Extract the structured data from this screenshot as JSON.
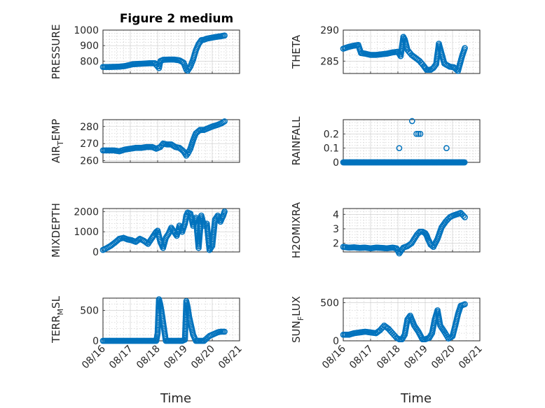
{
  "figure": {
    "title": "Figure 2 medium",
    "marker_color": "#0072BD"
  },
  "x_axis": {
    "label": "Time",
    "ticks": [
      {
        "t": 0,
        "label": "08/16"
      },
      {
        "t": 1,
        "label": "08/17"
      },
      {
        "t": 2,
        "label": "08/18"
      },
      {
        "t": 3,
        "label": "08/19"
      },
      {
        "t": 4,
        "label": "08/20"
      },
      {
        "t": 5,
        "label": "08/21"
      }
    ]
  },
  "chart_data": [
    {
      "type": "scatter",
      "ylabel": "PRESSURE",
      "ylim": [
        720,
        1000
      ],
      "yticks": [
        {
          "v": 800,
          "label": "800"
        },
        {
          "v": 900,
          "label": "900"
        },
        {
          "v": 1000,
          "label": "1000"
        }
      ],
      "x": [
        0.0,
        0.2,
        0.4,
        0.6,
        0.8,
        0.95,
        1.1,
        1.3,
        1.5,
        1.7,
        1.9,
        2.0,
        2.05,
        2.1,
        2.2,
        2.4,
        2.6,
        2.8,
        2.95,
        3.05,
        3.1,
        3.2,
        3.3,
        3.4,
        3.5,
        3.6,
        3.7,
        3.8,
        3.95,
        4.1,
        4.3,
        4.45
      ],
      "y": [
        762,
        762,
        763,
        764,
        768,
        774,
        780,
        782,
        784,
        786,
        786,
        765,
        755,
        800,
        808,
        810,
        810,
        805,
        790,
        745,
        738,
        765,
        810,
        870,
        910,
        935,
        938,
        945,
        950,
        955,
        960,
        965
      ]
    },
    {
      "type": "scatter",
      "ylabel": "THETA",
      "ylim": [
        283,
        290
      ],
      "yticks": [
        {
          "v": 285,
          "label": "285"
        },
        {
          "v": 290,
          "label": "290"
        }
      ],
      "x": [
        0.0,
        0.2,
        0.4,
        0.55,
        0.65,
        0.8,
        1.0,
        1.2,
        1.4,
        1.6,
        1.8,
        2.0,
        2.1,
        2.2,
        2.25,
        2.35,
        2.5,
        2.65,
        2.8,
        2.95,
        3.05,
        3.2,
        3.3,
        3.4,
        3.5,
        3.7,
        3.9,
        4.05,
        4.2,
        4.35,
        4.45
      ],
      "y": [
        287.0,
        287.3,
        287.5,
        287.6,
        286.3,
        286.2,
        286.0,
        286.0,
        286.1,
        286.2,
        286.4,
        286.5,
        285.8,
        288.9,
        288.5,
        286.8,
        286.0,
        285.5,
        285.0,
        284.2,
        283.6,
        283.6,
        283.9,
        284.5,
        287.8,
        284.6,
        284.1,
        284.0,
        283.4,
        285.8,
        287.1
      ]
    },
    {
      "type": "scatter",
      "ylabel": "AIR_TEMP",
      "ylabel_main": "AIR",
      "ylabel_sub": "T",
      "ylabel_tail": "EMP",
      "ylim": [
        259,
        284
      ],
      "yticks": [
        {
          "v": 260,
          "label": "260"
        },
        {
          "v": 270,
          "label": "270"
        },
        {
          "v": 280,
          "label": "280"
        }
      ],
      "x": [
        0.0,
        0.2,
        0.4,
        0.6,
        0.8,
        1.0,
        1.2,
        1.4,
        1.6,
        1.8,
        1.95,
        2.1,
        2.2,
        2.35,
        2.5,
        2.65,
        2.8,
        2.95,
        3.05,
        3.1,
        3.2,
        3.3,
        3.4,
        3.55,
        3.7,
        3.85,
        4.0,
        4.2,
        4.35,
        4.45
      ],
      "y": [
        266,
        266,
        266,
        265.5,
        266.5,
        267,
        267.5,
        267.5,
        268,
        268,
        267,
        268,
        270,
        269.5,
        269.5,
        268,
        267.5,
        265.5,
        263,
        264,
        267,
        272,
        276,
        278,
        278,
        279,
        280,
        281,
        282,
        283
      ]
    },
    {
      "type": "scatter",
      "ylabel": "RAINFALL",
      "ylim": [
        0,
        0.3
      ],
      "yticks": [
        {
          "v": 0,
          "label": "0"
        },
        {
          "v": 0.1,
          "label": "0.1"
        },
        {
          "v": 0.2,
          "label": "0.2"
        }
      ],
      "x": [
        0.0,
        0.2,
        0.4,
        0.6,
        0.8,
        1.0,
        1.2,
        1.4,
        1.6,
        1.8,
        2.0,
        2.05,
        2.2,
        2.4,
        2.6,
        2.8,
        3.0,
        3.2,
        3.4,
        3.6,
        3.8,
        3.95,
        4.0,
        4.2,
        4.45,
        2.52,
        2.68,
        2.75,
        2.82,
        3.78
      ],
      "y": [
        0,
        0,
        0,
        0,
        0,
        0,
        0,
        0,
        0,
        0,
        0,
        0.1,
        0,
        0,
        0,
        0,
        0,
        0,
        0,
        0,
        0,
        0,
        0,
        0,
        0,
        0.29,
        0.2,
        0.2,
        0.2,
        0.1
      ]
    },
    {
      "type": "scatter",
      "ylabel": "MIXDEPTH",
      "ylim": [
        0,
        2150
      ],
      "yticks": [
        {
          "v": 0,
          "label": "0"
        },
        {
          "v": 1000,
          "label": "1000"
        },
        {
          "v": 2000,
          "label": "2000"
        }
      ],
      "x": [
        0.0,
        0.15,
        0.3,
        0.45,
        0.6,
        0.75,
        0.9,
        1.05,
        1.2,
        1.35,
        1.5,
        1.65,
        1.8,
        1.9,
        1.95,
        2.0,
        2.1,
        2.2,
        2.3,
        2.4,
        2.5,
        2.6,
        2.7,
        2.8,
        2.9,
        3.0,
        3.05,
        3.1,
        3.2,
        3.3,
        3.4,
        3.5,
        3.6,
        3.7,
        3.8,
        3.9,
        4.0,
        4.1,
        4.2,
        4.3,
        4.4,
        4.45
      ],
      "y": [
        100,
        200,
        320,
        480,
        650,
        700,
        620,
        580,
        500,
        650,
        550,
        400,
        700,
        900,
        1000,
        1050,
        500,
        200,
        700,
        900,
        1200,
        1000,
        800,
        1300,
        1000,
        1400,
        1800,
        1950,
        1900,
        1300,
        1700,
        200,
        1800,
        1300,
        1400,
        100,
        300,
        1600,
        1800,
        1500,
        1800,
        2000
      ]
    },
    {
      "type": "scatter",
      "ylabel": "H2OMIXRA",
      "ylim": [
        1.4,
        4.4
      ],
      "yticks": [
        {
          "v": 2,
          "label": "2"
        },
        {
          "v": 3,
          "label": "3"
        },
        {
          "v": 4,
          "label": "4"
        }
      ],
      "x": [
        0.0,
        0.2,
        0.4,
        0.6,
        0.8,
        1.0,
        1.2,
        1.4,
        1.6,
        1.8,
        1.95,
        2.05,
        2.2,
        2.35,
        2.5,
        2.6,
        2.7,
        2.8,
        2.9,
        3.0,
        3.05,
        3.1,
        3.2,
        3.3,
        3.45,
        3.6,
        3.75,
        3.9,
        4.0,
        4.15,
        4.3,
        4.45
      ],
      "y": [
        1.75,
        1.7,
        1.72,
        1.68,
        1.7,
        1.65,
        1.7,
        1.68,
        1.65,
        1.7,
        1.65,
        1.3,
        1.7,
        1.8,
        2.0,
        2.3,
        2.6,
        2.8,
        2.8,
        2.7,
        2.55,
        2.3,
        1.9,
        1.75,
        2.3,
        3.1,
        3.5,
        3.8,
        3.9,
        4.0,
        4.1,
        3.8
      ]
    },
    {
      "type": "scatter",
      "ylabel": "TERR_MSL",
      "ylabel_main": "TERR",
      "ylabel_sub": "M",
      "ylabel_tail": "SL",
      "ylim": [
        0,
        700
      ],
      "yticks": [
        {
          "v": 0,
          "label": "0"
        },
        {
          "v": 500,
          "label": "500"
        }
      ],
      "x": [
        0.0,
        0.2,
        0.4,
        0.6,
        0.8,
        1.0,
        1.2,
        1.4,
        1.6,
        1.8,
        1.95,
        2.0,
        2.05,
        2.1,
        2.15,
        2.3,
        2.5,
        2.7,
        2.9,
        3.0,
        3.05,
        3.1,
        3.15,
        3.2,
        3.25,
        3.3,
        3.4,
        3.5,
        3.6,
        3.7,
        3.8,
        3.9,
        4.0,
        4.1,
        4.2,
        4.3,
        4.45
      ],
      "y": [
        0,
        0,
        0,
        0,
        0,
        0,
        0,
        0,
        0,
        0,
        0,
        120,
        680,
        590,
        460,
        0,
        0,
        0,
        0,
        20,
        650,
        550,
        400,
        300,
        200,
        100,
        0,
        0,
        0,
        0,
        40,
        80,
        100,
        120,
        140,
        150,
        150
      ]
    },
    {
      "type": "scatter",
      "ylabel": "SUN_FLUX",
      "ylabel_main": "SUN",
      "ylabel_sub": "F",
      "ylabel_tail": "LUX",
      "ylim": [
        0,
        560
      ],
      "yticks": [
        {
          "v": 0,
          "label": "0"
        },
        {
          "v": 500,
          "label": "500"
        }
      ],
      "x": [
        0.0,
        0.2,
        0.4,
        0.6,
        0.8,
        1.0,
        1.2,
        1.35,
        1.5,
        1.65,
        1.8,
        1.95,
        2.05,
        2.15,
        2.25,
        2.35,
        2.45,
        2.6,
        2.75,
        2.9,
        3.0,
        3.15,
        3.25,
        3.35,
        3.45,
        3.55,
        3.7,
        3.85,
        4.0,
        4.1,
        4.2,
        4.3,
        4.45
      ],
      "y": [
        80,
        80,
        100,
        110,
        120,
        110,
        100,
        140,
        200,
        160,
        100,
        40,
        20,
        20,
        80,
        280,
        330,
        200,
        120,
        20,
        20,
        40,
        100,
        280,
        400,
        200,
        120,
        30,
        60,
        200,
        350,
        460,
        480
      ]
    }
  ]
}
